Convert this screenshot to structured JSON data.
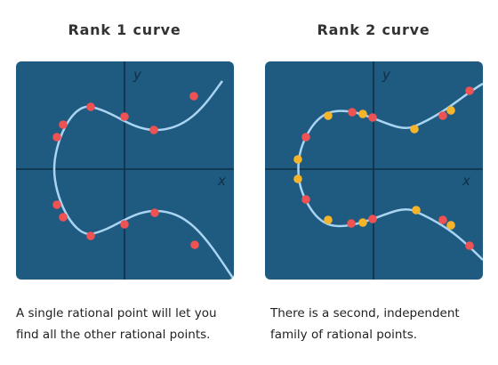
{
  "panels": [
    {
      "title": "Rank 1 curve",
      "axis_x_label": "x",
      "axis_y_label": "y",
      "caption": "A single rational point will let you find all the other rational points.",
      "colors": {
        "background": "#1f5a80",
        "axis": "#0f2f45",
        "curve": "#a9d4f2",
        "point_family_1": "#ee5253"
      },
      "point_families": 1
    },
    {
      "title": "Rank 2 curve",
      "axis_x_label": "x",
      "axis_y_label": "y",
      "caption": "There is a second, independent family of rational points.",
      "colors": {
        "background": "#1f5a80",
        "axis": "#0f2f45",
        "curve": "#a9d4f2",
        "point_family_1": "#ee5253",
        "point_family_2": "#f6b42a"
      },
      "point_families": 2
    }
  ]
}
